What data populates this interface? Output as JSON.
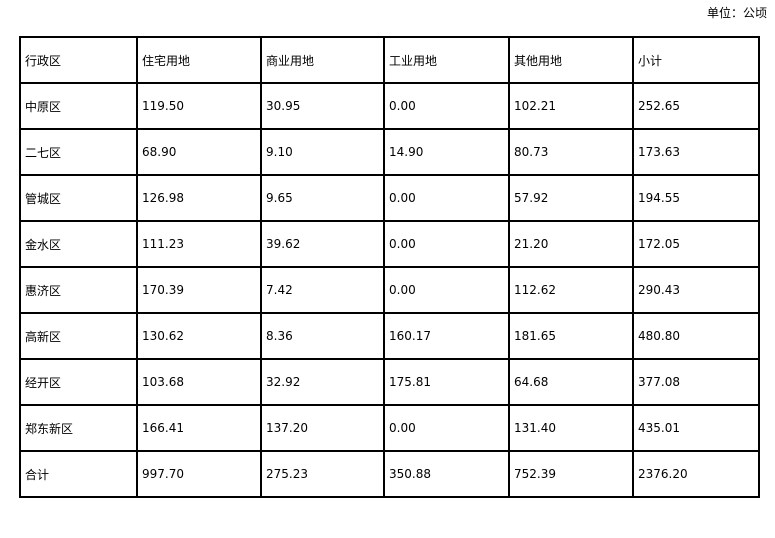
{
  "unit_label": "单位：公顷",
  "table": {
    "headers": [
      "行政区",
      "住宅用地",
      "商业用地",
      "工业用地",
      "其他用地",
      "小计"
    ],
    "rows": [
      [
        "中原区",
        "119.50",
        "30.95",
        "0.00",
        "102.21",
        "252.65"
      ],
      [
        "二七区",
        "68.90",
        "9.10",
        "14.90",
        "80.73",
        "173.63"
      ],
      [
        "管城区",
        "126.98",
        "9.65",
        "0.00",
        "57.92",
        "194.55"
      ],
      [
        "金水区",
        "111.23",
        "39.62",
        "0.00",
        "21.20",
        "172.05"
      ],
      [
        "惠济区",
        "170.39",
        "7.42",
        "0.00",
        "112.62",
        "290.43"
      ],
      [
        "高新区",
        "130.62",
        "8.36",
        "160.17",
        "181.65",
        "480.80"
      ],
      [
        "经开区",
        "103.68",
        "32.92",
        "175.81",
        "64.68",
        "377.08"
      ],
      [
        "郑东新区",
        "166.41",
        "137.20",
        "0.00",
        "131.40",
        "435.01"
      ],
      [
        "合计",
        "997.70",
        "275.23",
        "350.88",
        "752.39",
        "2376.20"
      ]
    ]
  }
}
